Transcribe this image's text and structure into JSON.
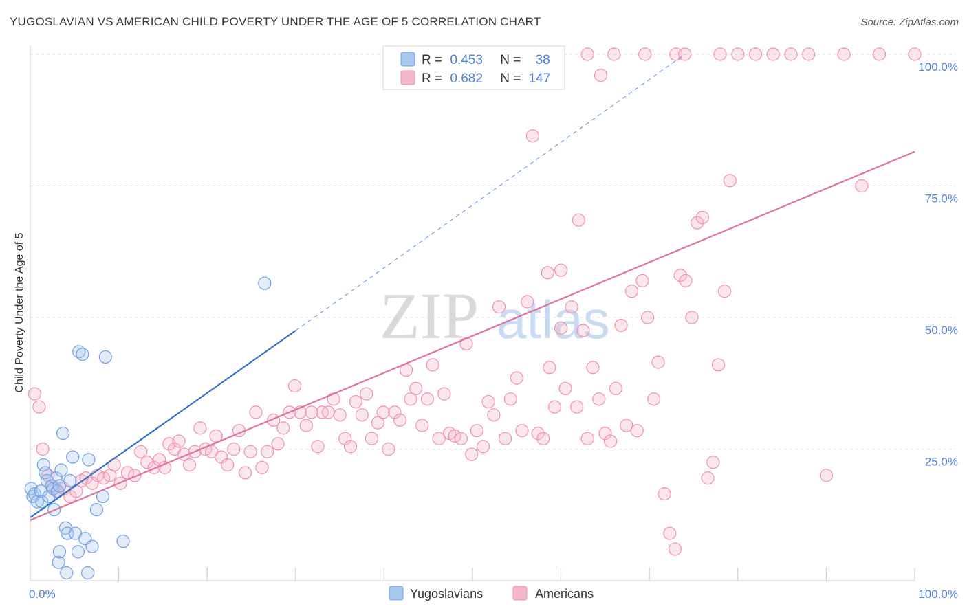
{
  "title": "YUGOSLAVIAN VS AMERICAN CHILD POVERTY UNDER THE AGE OF 5 CORRELATION CHART",
  "source": "Source: ZipAtlas.com",
  "watermark": {
    "zip": "ZIP",
    "atlas": "atlas"
  },
  "colors": {
    "blue": "#a9c6ef",
    "blue_stroke": "#6f9fe0",
    "blue_line": "#2f72cc",
    "pink": "#f6b8cb",
    "pink_stroke": "#ee8fae",
    "pink_line": "#e3709a",
    "tick_text": "#4a7fd4",
    "grid": "#dddddd"
  },
  "legend": {
    "rows": [
      {
        "r_label": "R =",
        "r_value": "0.453",
        "n_label": "N =",
        "n_value": "38"
      },
      {
        "r_label": "R =",
        "r_value": "0.682",
        "n_label": "N =",
        "n_value": "147"
      }
    ]
  },
  "chart_data": {
    "type": "scatter",
    "title": "YUGOSLAVIAN VS AMERICAN CHILD POVERTY UNDER THE AGE OF 5 CORRELATION CHART",
    "xlabel": "",
    "ylabel": "Child Poverty Under the Age of 5",
    "xlim": [
      0,
      100
    ],
    "ylim": [
      0,
      100
    ],
    "x_tick_labels": [
      "0.0%",
      "100.0%"
    ],
    "y_ticks": [
      25,
      50,
      75,
      100
    ],
    "y_tick_labels": [
      "25.0%",
      "50.0%",
      "75.0%",
      "100.0%"
    ],
    "grid": true,
    "legend_position": "bottom",
    "series": [
      {
        "name": "Yugoslavians",
        "r": 0.453,
        "n": 38,
        "trend": {
          "x0": 0,
          "y0": 12,
          "x1": 30,
          "y1": 47.5,
          "dash_x1": 74,
          "dash_y1": 100
        },
        "points": [
          [
            0.1,
            17.5
          ],
          [
            0.3,
            16
          ],
          [
            0.5,
            16.5
          ],
          [
            0.8,
            15
          ],
          [
            1.2,
            17
          ],
          [
            1.3,
            15
          ],
          [
            1.5,
            22
          ],
          [
            1.7,
            20.5
          ],
          [
            1.9,
            19
          ],
          [
            2.1,
            16
          ],
          [
            2.4,
            18
          ],
          [
            2.6,
            17.5
          ],
          [
            2.7,
            13.5
          ],
          [
            2.9,
            19.5
          ],
          [
            3.1,
            17
          ],
          [
            3.3,
            18
          ],
          [
            3.5,
            21
          ],
          [
            3.7,
            28
          ],
          [
            4.0,
            10
          ],
          [
            4.2,
            9
          ],
          [
            4.5,
            19
          ],
          [
            4.8,
            23.5
          ],
          [
            5.1,
            9
          ],
          [
            5.4,
            5.5
          ],
          [
            5.5,
            43.5
          ],
          [
            5.9,
            43
          ],
          [
            6.2,
            8
          ],
          [
            6.6,
            23
          ],
          [
            7.0,
            6.5
          ],
          [
            7.5,
            13.5
          ],
          [
            8.2,
            16
          ],
          [
            8.5,
            42.5
          ],
          [
            3.2,
            3.5
          ],
          [
            4.1,
            1.5
          ],
          [
            6.5,
            1.5
          ],
          [
            3.3,
            5.5
          ],
          [
            10.5,
            7.5
          ],
          [
            26.5,
            56.5
          ]
        ]
      },
      {
        "name": "Americans",
        "r": 0.682,
        "n": 147,
        "trend": {
          "x0": 0,
          "y0": 11.5,
          "x1": 100,
          "y1": 81.5
        },
        "points": [
          [
            0.5,
            35.5
          ],
          [
            1.0,
            33
          ],
          [
            1.4,
            25
          ],
          [
            2.0,
            20
          ],
          [
            2.5,
            18
          ],
          [
            3.0,
            17
          ],
          [
            3.8,
            17.5
          ],
          [
            4.5,
            16
          ],
          [
            5.2,
            17
          ],
          [
            5.8,
            19
          ],
          [
            6.3,
            19.5
          ],
          [
            7.0,
            18.5
          ],
          [
            7.6,
            20
          ],
          [
            8.3,
            19.5
          ],
          [
            9.0,
            20
          ],
          [
            9.5,
            22
          ],
          [
            10.2,
            18.5
          ],
          [
            11.0,
            20.5
          ],
          [
            11.8,
            20
          ],
          [
            12.5,
            24.5
          ],
          [
            13.2,
            22.5
          ],
          [
            14.0,
            21.5
          ],
          [
            14.6,
            23
          ],
          [
            15.2,
            21.5
          ],
          [
            15.7,
            26
          ],
          [
            16.3,
            25
          ],
          [
            16.8,
            26.5
          ],
          [
            17.4,
            24
          ],
          [
            18.0,
            22
          ],
          [
            18.6,
            24.5
          ],
          [
            19.2,
            29
          ],
          [
            19.8,
            25
          ],
          [
            20.5,
            24.5
          ],
          [
            21.0,
            27.5
          ],
          [
            21.6,
            23.5
          ],
          [
            22.3,
            22
          ],
          [
            23.0,
            25
          ],
          [
            23.6,
            28.5
          ],
          [
            24.3,
            20.5
          ],
          [
            24.9,
            24.5
          ],
          [
            25.5,
            32
          ],
          [
            26.2,
            21.5
          ],
          [
            26.8,
            24.5
          ],
          [
            27.5,
            30.5
          ],
          [
            28.0,
            26
          ],
          [
            28.6,
            29
          ],
          [
            29.3,
            32
          ],
          [
            29.9,
            37
          ],
          [
            30.5,
            32
          ],
          [
            31.2,
            29.5
          ],
          [
            31.8,
            32
          ],
          [
            32.5,
            25.5
          ],
          [
            33.0,
            32
          ],
          [
            33.7,
            32
          ],
          [
            34.3,
            34.5
          ],
          [
            35.0,
            31.5
          ],
          [
            35.6,
            27
          ],
          [
            36.2,
            25.5
          ],
          [
            36.8,
            34
          ],
          [
            37.5,
            31.5
          ],
          [
            38.0,
            35.5
          ],
          [
            38.6,
            27
          ],
          [
            39.3,
            30
          ],
          [
            39.9,
            32
          ],
          [
            40.5,
            25
          ],
          [
            41.2,
            32
          ],
          [
            41.8,
            30.5
          ],
          [
            42.5,
            40
          ],
          [
            43.0,
            34.5
          ],
          [
            43.6,
            36.5
          ],
          [
            44.3,
            29.5
          ],
          [
            44.9,
            34.5
          ],
          [
            45.5,
            41
          ],
          [
            46.2,
            27
          ],
          [
            46.8,
            35.5
          ],
          [
            47.4,
            28
          ],
          [
            48.0,
            27.5
          ],
          [
            48.7,
            27
          ],
          [
            49.3,
            45
          ],
          [
            49.9,
            24
          ],
          [
            50.5,
            28.5
          ],
          [
            51.2,
            25.5
          ],
          [
            51.8,
            34
          ],
          [
            52.4,
            31.5
          ],
          [
            53.0,
            52
          ],
          [
            53.7,
            27
          ],
          [
            54.3,
            34.5
          ],
          [
            55.0,
            38.5
          ],
          [
            55.6,
            28.5
          ],
          [
            56.2,
            53
          ],
          [
            56.8,
            84.5
          ],
          [
            57.4,
            28
          ],
          [
            58.0,
            27
          ],
          [
            58.7,
            40.5
          ],
          [
            59.3,
            33
          ],
          [
            60.0,
            48
          ],
          [
            60.5,
            36.5
          ],
          [
            61.2,
            52
          ],
          [
            61.8,
            33
          ],
          [
            62.5,
            47.5
          ],
          [
            63.0,
            27
          ],
          [
            63.6,
            40.5
          ],
          [
            64.3,
            34.5
          ],
          [
            65.0,
            28
          ],
          [
            65.6,
            26.5
          ],
          [
            66.2,
            36.5
          ],
          [
            66.8,
            48.5
          ],
          [
            67.4,
            29.5
          ],
          [
            68.0,
            55
          ],
          [
            68.6,
            28.5
          ],
          [
            69.2,
            57
          ],
          [
            69.8,
            50
          ],
          [
            70.5,
            34.5
          ],
          [
            71.0,
            41.5
          ],
          [
            71.7,
            16.5
          ],
          [
            72.3,
            9
          ],
          [
            72.9,
            6
          ],
          [
            73.5,
            58
          ],
          [
            74.1,
            57
          ],
          [
            74.8,
            50
          ],
          [
            75.4,
            68
          ],
          [
            76.0,
            69
          ],
          [
            76.6,
            19.5
          ],
          [
            77.2,
            22.5
          ],
          [
            77.8,
            41
          ],
          [
            78.5,
            55
          ],
          [
            79.1,
            76
          ],
          [
            80.0,
            100
          ],
          [
            82.0,
            100
          ],
          [
            84.0,
            100
          ],
          [
            86.0,
            100
          ],
          [
            88.0,
            100
          ],
          [
            90.0,
            20
          ],
          [
            92.0,
            100
          ],
          [
            94.0,
            75
          ],
          [
            96.0,
            100
          ],
          [
            100.0,
            100
          ],
          [
            60.0,
            59
          ],
          [
            62.0,
            68.5
          ],
          [
            63.0,
            100
          ],
          [
            64.5,
            96
          ],
          [
            58.5,
            58.5
          ],
          [
            66.0,
            100
          ],
          [
            69.5,
            100
          ],
          [
            73.0,
            100
          ],
          [
            74.0,
            100
          ],
          [
            78.0,
            100
          ]
        ]
      }
    ]
  }
}
